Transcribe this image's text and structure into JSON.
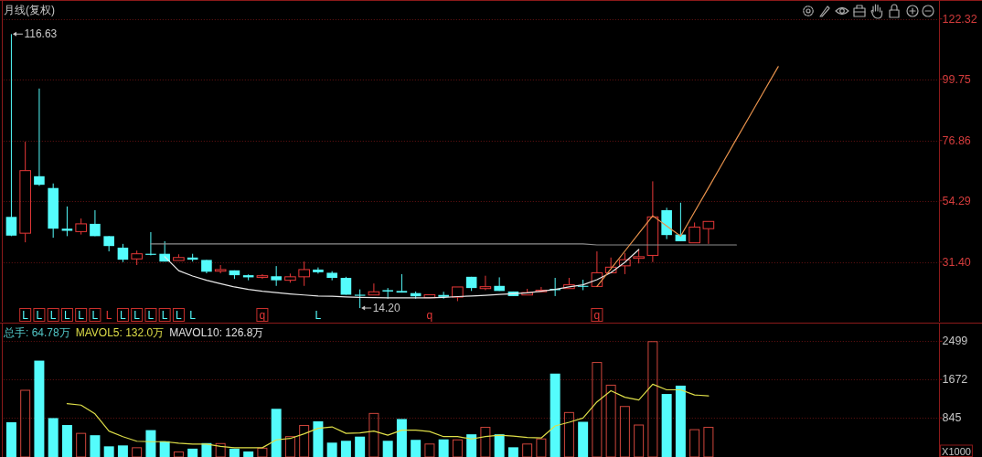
{
  "chart_data": [
    {
      "type": "candlestick",
      "title": "月线(复权)",
      "categories": [
        null,
        "L",
        "L",
        "L",
        "L",
        "L",
        "L",
        "L",
        "L",
        "L",
        "L",
        "L",
        "L",
        "L",
        null,
        null,
        null,
        null,
        "q",
        null,
        null,
        null,
        "L",
        null,
        null,
        null,
        null,
        null,
        null,
        null,
        "q",
        null,
        null,
        null,
        null,
        null,
        null,
        null,
        null,
        null,
        null,
        null,
        "q",
        null,
        null,
        null,
        null,
        null,
        null,
        null,
        null,
        null,
        null,
        null,
        null,
        null,
        null,
        null,
        null,
        null,
        null,
        null,
        null,
        null,
        null,
        null,
        null
      ],
      "ohlc": [
        [
          48.3,
          116.63,
          41.1,
          41.3
        ],
        [
          42.2,
          76.4,
          38.8,
          65.6
        ],
        [
          63.5,
          96.3,
          59.9,
          60.3
        ],
        [
          59.1,
          60.8,
          40.5,
          43.9
        ],
        [
          43.9,
          52.2,
          41.1,
          43.1
        ],
        [
          42.8,
          47.7,
          41.7,
          45.7
        ],
        [
          45.7,
          50.8,
          41.1,
          41.1
        ],
        [
          41.1,
          41.1,
          35.4,
          37.4
        ],
        [
          36.8,
          38.2,
          31.4,
          32.3
        ],
        [
          32.6,
          35.7,
          30.3,
          34.5
        ],
        [
          34.5,
          42.6,
          33.9,
          34.1
        ],
        [
          34.5,
          39.2,
          31.6,
          31.6
        ],
        [
          32.0,
          34.3,
          31.6,
          33.1
        ],
        [
          33.1,
          34.5,
          31.6,
          32.3
        ],
        [
          32.2,
          32.2,
          27.2,
          27.8
        ],
        [
          28.0,
          30.3,
          27.2,
          28.6
        ],
        [
          28.3,
          28.3,
          25.1,
          26.5
        ],
        [
          26.5,
          26.8,
          24.6,
          25.7
        ],
        [
          25.7,
          26.9,
          25.1,
          26.3
        ],
        [
          26.1,
          29.9,
          22.5,
          24.6
        ],
        [
          24.6,
          27.1,
          23.7,
          25.9
        ],
        [
          25.9,
          31.6,
          22.5,
          28.6
        ],
        [
          28.6,
          29.4,
          27.1,
          27.6
        ],
        [
          27.4,
          28.0,
          24.6,
          25.5
        ],
        [
          25.5,
          25.9,
          19.2,
          19.2
        ],
        [
          19.2,
          21.2,
          14.2,
          18.8
        ],
        [
          19.1,
          23.4,
          19.1,
          20.3
        ],
        [
          20.9,
          21.7,
          17.7,
          20.4
        ],
        [
          20.6,
          26.9,
          20.0,
          20.0
        ],
        [
          19.8,
          20.4,
          17.7,
          18.6
        ],
        [
          18.1,
          19.2,
          18.1,
          19.2
        ],
        [
          19.1,
          20.3,
          17.7,
          18.4
        ],
        [
          18.3,
          22.1,
          16.8,
          22.1
        ],
        [
          25.9,
          25.9,
          20.6,
          21.7
        ],
        [
          21.5,
          26.3,
          20.9,
          22.2
        ],
        [
          22.5,
          25.7,
          20.6,
          20.6
        ],
        [
          20.4,
          20.4,
          18.7,
          18.7
        ],
        [
          19.1,
          21.4,
          19.1,
          20.0
        ],
        [
          20.3,
          22.1,
          19.8,
          20.9
        ],
        [
          21.4,
          25.5,
          18.7,
          20.9
        ],
        [
          21.5,
          25.5,
          21.5,
          22.9
        ],
        [
          22.5,
          24.8,
          20.9,
          22.2
        ],
        [
          22.3,
          35.4,
          22.3,
          27.4
        ],
        [
          27.4,
          33.1,
          27.4,
          29.5
        ],
        [
          30.0,
          34.8,
          26.9,
          32.3
        ],
        [
          32.8,
          36.0,
          30.9,
          33.4
        ],
        [
          33.9,
          61.6,
          31.4,
          48.3
        ],
        [
          50.8,
          51.7,
          40.0,
          41.5
        ],
        [
          41.7,
          53.6,
          39.2,
          39.2
        ],
        [
          38.6,
          46.2,
          38.6,
          44.5
        ],
        [
          43.9,
          46.6,
          38.2,
          46.6
        ],
        null,
        null,
        null,
        null,
        null,
        null,
        null,
        null,
        null,
        null,
        null,
        null,
        null,
        null,
        null,
        null
      ],
      "colors": [
        "#54fcfc",
        "#e83838",
        "#54fcfc",
        "#54fcfc",
        "#54fcfc",
        "#e83838",
        "#54fcfc",
        "#54fcfc",
        "#54fcfc",
        "#e83838",
        "#54fcfc",
        "#54fcfc",
        "#e83838",
        "#54fcfc",
        "#54fcfc",
        "#e83838",
        "#54fcfc",
        "#54fcfc",
        "#e83838",
        "#54fcfc",
        "#e83838",
        "#e83838",
        "#54fcfc",
        "#54fcfc",
        "#54fcfc",
        "#54fcfc",
        "#e83838",
        "#54fcfc",
        "#54fcfc",
        "#54fcfc",
        "#e83838",
        "#54fcfc",
        "#e83838",
        "#54fcfc",
        "#e83838",
        "#54fcfc",
        "#54fcfc",
        "#e83838",
        "#e83838",
        "#54fcfc",
        "#e83838",
        "#54fcfc",
        "#e83838",
        "#e83838",
        "#e83838",
        "#e83838",
        "#e83838",
        "#54fcfc",
        "#54fcfc",
        "#e83838",
        "#e83838",
        null,
        null,
        null,
        null,
        null,
        null,
        null,
        null,
        null,
        null,
        null,
        null,
        null,
        null,
        null,
        null
      ],
      "ylim": [
        9.1,
        129.4
      ],
      "yticks": [
        {
          "value": 31.4,
          "label": "31.40"
        },
        54.29,
        76.86,
        99.75,
        122.32
      ],
      "grid": "y",
      "annotations": [
        "116.63",
        "14.20"
      ],
      "series": [
        {
          "type": "line",
          "color": "#8e8e8e",
          "values": [
            null,
            null,
            null,
            null,
            null,
            null,
            null,
            null,
            null,
            null,
            38.2,
            38.2,
            38.2,
            38.2,
            38.2,
            38.2,
            38.2,
            38.2,
            38.2,
            38.2,
            38.2,
            38.2,
            38.2,
            38.2,
            38.2,
            38.2,
            38.2,
            38.2,
            38.2,
            38.2,
            38.2,
            38.2,
            38.2,
            38.2,
            38.2,
            38.2,
            38.2,
            38.2,
            38.2,
            38.2,
            38.2,
            38.2,
            37.8,
            37.8,
            37.8,
            37.8,
            37.8,
            37.8,
            37.8,
            37.8,
            37.8,
            37.8,
            37.8,
            null,
            null,
            null,
            null,
            null,
            null,
            null,
            null,
            null,
            null,
            null,
            null,
            null,
            null
          ]
        },
        {
          "type": "line",
          "color": "#e8e8e8",
          "values": [
            null,
            null,
            null,
            null,
            null,
            null,
            null,
            null,
            null,
            null,
            null,
            33.4,
            28.2,
            26.2,
            24.6,
            23.3,
            22.1,
            21.2,
            20.5,
            20.0,
            19.5,
            19.1,
            18.7,
            18.6,
            18.4,
            18.2,
            18.1,
            18.0,
            18.0,
            18.0,
            18.0,
            18.2,
            18.5,
            18.7,
            19.0,
            19.3,
            19.6,
            19.9,
            20.5,
            21.2,
            22.1,
            22.9,
            24.8,
            27.5,
            31.3,
            36.1,
            null,
            null,
            null,
            null,
            null,
            null,
            null,
            null,
            null,
            null,
            null,
            null,
            null,
            null,
            null,
            null,
            null,
            null,
            null,
            null,
            null
          ]
        },
        {
          "type": "line",
          "color": "#e8924c",
          "values": [
            null,
            null,
            null,
            null,
            null,
            null,
            null,
            null,
            null,
            null,
            null,
            null,
            null,
            null,
            null,
            null,
            null,
            null,
            null,
            null,
            null,
            null,
            null,
            null,
            null,
            null,
            null,
            null,
            null,
            null,
            null,
            null,
            null,
            null,
            null,
            null,
            null,
            null,
            null,
            null,
            null,
            null,
            22.3,
            28.9,
            35.5,
            42.1,
            48.7,
            44.9,
            41.1,
            50.2,
            59.2,
            68.3,
            77.4,
            86.4,
            95.5,
            104.5,
            null,
            null,
            null,
            null,
            null,
            null,
            null,
            null,
            null,
            null,
            null
          ]
        }
      ]
    },
    {
      "type": "bar",
      "categories": [
        null,
        null,
        null,
        null,
        null,
        null,
        null,
        null,
        null,
        null,
        null,
        null,
        null,
        null,
        null,
        null,
        null,
        null,
        null,
        null,
        null,
        null,
        null,
        null,
        null,
        null,
        null,
        null,
        null,
        null,
        null,
        null,
        null,
        null,
        null,
        null,
        null,
        null,
        null,
        null,
        null,
        null,
        null,
        null,
        null,
        null,
        null,
        null,
        null,
        null,
        null,
        null,
        null,
        null,
        null,
        null,
        null,
        null,
        null,
        null,
        null,
        null,
        null,
        null,
        null,
        null,
        null
      ],
      "ylim": [
        0,
        2900
      ],
      "yticks": [
        845,
        1672,
        2499
      ],
      "ylabel": "X1000",
      "grid": "y",
      "tick_labels": "y",
      "legend": "top left",
      "annotations": [
        "MAVOL10: 126.8万"
      ],
      "series": [
        {
          "name": "总手: 64.78万",
          "color": "#52c6c6",
          "colors": [
            "#54fcfc",
            "#d0463c",
            "#54fcfc",
            "#54fcfc",
            "#54fcfc",
            "#d0463c",
            "#54fcfc",
            "#54fcfc",
            "#54fcfc",
            "#d0463c",
            "#54fcfc",
            "#54fcfc",
            "#d0463c",
            "#54fcfc",
            "#54fcfc",
            "#d0463c",
            "#54fcfc",
            "#54fcfc",
            "#d0463c",
            "#54fcfc",
            "#d0463c",
            "#d0463c",
            "#54fcfc",
            "#54fcfc",
            "#54fcfc",
            "#54fcfc",
            "#d0463c",
            "#54fcfc",
            "#54fcfc",
            "#54fcfc",
            "#d0463c",
            "#54fcfc",
            "#d0463c",
            "#54fcfc",
            "#d0463c",
            "#54fcfc",
            "#54fcfc",
            "#d0463c",
            "#d0463c",
            "#54fcfc",
            "#d0463c",
            "#54fcfc",
            "#d0463c",
            "#d0463c",
            "#d0463c",
            "#d0463c",
            "#d0463c",
            "#54fcfc",
            "#54fcfc",
            "#d0463c",
            "#d0463c",
            null,
            null,
            null,
            null,
            null,
            null,
            null,
            null,
            null,
            null,
            null,
            null,
            null,
            null,
            null,
            null
          ],
          "values": [
            750,
            1450,
            2080,
            840,
            690,
            520,
            470,
            230,
            250,
            210,
            580,
            340,
            120,
            180,
            300,
            300,
            180,
            120,
            200,
            1040,
            450,
            690,
            770,
            310,
            350,
            440,
            950,
            350,
            820,
            370,
            290,
            380,
            380,
            490,
            650,
            490,
            210,
            290,
            400,
            1800,
            970,
            760,
            2050,
            1560,
            1100,
            700,
            2500,
            1360,
            1540,
            600,
            650,
            null,
            null,
            null,
            null,
            null,
            null,
            null,
            null,
            null,
            null,
            null,
            null,
            null,
            null,
            null,
            null
          ]
        },
        {
          "type": "line",
          "name": "MAVOL5: 132.0万",
          "color": "#dede48",
          "values": [
            null,
            null,
            null,
            null,
            1150,
            1120,
            930,
            560,
            440,
            340,
            330,
            330,
            300,
            280,
            280,
            230,
            200,
            200,
            200,
            370,
            400,
            500,
            620,
            650,
            510,
            520,
            560,
            470,
            580,
            580,
            550,
            440,
            440,
            390,
            440,
            470,
            450,
            420,
            410,
            670,
            750,
            840,
            1190,
            1430,
            1290,
            1230,
            1570,
            1450,
            1450,
            1340,
            1320,
            null,
            null,
            null,
            null,
            null,
            null,
            null,
            null,
            null,
            null,
            null,
            null,
            null,
            null,
            null,
            null
          ]
        }
      ]
    }
  ]
}
